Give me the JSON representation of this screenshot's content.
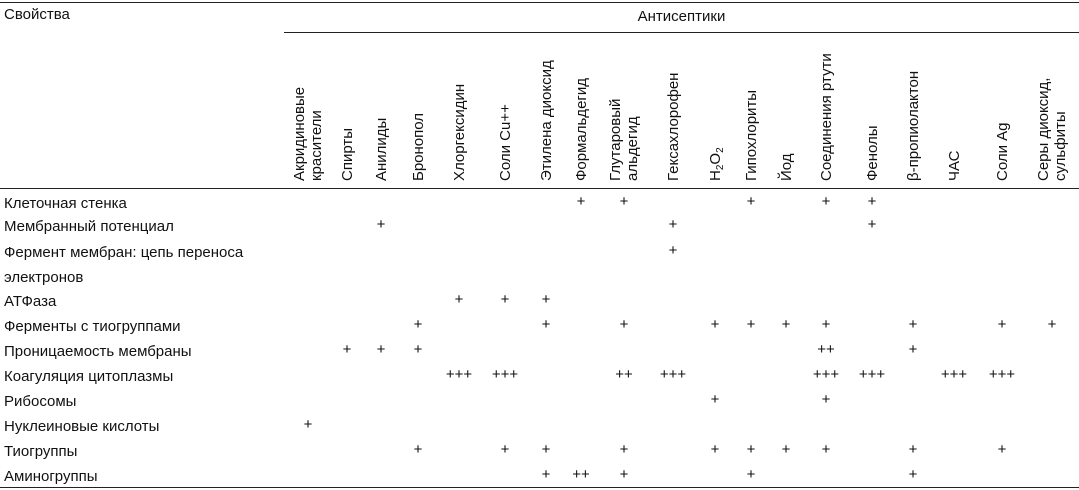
{
  "table": {
    "corner_header": "Свойства",
    "group_header": "Антисептики",
    "columns": [
      {
        "lines": [
          "Акридиновые",
          "красители"
        ]
      },
      {
        "lines": [
          "Спирты"
        ]
      },
      {
        "lines": [
          "Анилиды"
        ]
      },
      {
        "lines": [
          "Бронопол"
        ]
      },
      {
        "lines": [
          "Хлоргексидин"
        ]
      },
      {
        "lines": [
          "Соли Cu++"
        ]
      },
      {
        "lines": [
          "Этилена диоксид"
        ]
      },
      {
        "lines": [
          "Формальдегид"
        ]
      },
      {
        "lines": [
          "Глутаровый",
          "альдегид"
        ]
      },
      {
        "lines": [
          "Гексахлорофен"
        ]
      },
      {
        "lines": [
          "H2O2"
        ],
        "formula": {
          "a": "H",
          "sub1": "2",
          "b": "O",
          "sub2": "2"
        }
      },
      {
        "lines": [
          "Гипохлориты"
        ]
      },
      {
        "lines": [
          "Йод"
        ]
      },
      {
        "lines": [
          "Соединения ртути"
        ]
      },
      {
        "lines": [
          "Фенолы"
        ]
      },
      {
        "lines": [
          "β-пропиолактон"
        ]
      },
      {
        "lines": [
          "ЧАС"
        ]
      },
      {
        "lines": [
          "Соли Ag"
        ]
      },
      {
        "lines": [
          "Серы диоксид,",
          "сульфиты"
        ]
      }
    ],
    "rows": [
      {
        "label": [
          "Клеточная стенка"
        ],
        "marks": {
          "7": "+",
          "8": "+",
          "11": "+",
          "13": "+",
          "14": "+"
        }
      },
      {
        "label": [
          "Мембранный потенциал"
        ],
        "marks": {
          "2": "+",
          "9": "+",
          "14": "+"
        }
      },
      {
        "label": [
          "Фермент мембран: цепь переноса",
          "электронов"
        ],
        "marks": {
          "9": "+"
        }
      },
      {
        "label": [
          "АТФаза"
        ],
        "marks": {
          "4": "+",
          "5": "+",
          "6": "+"
        }
      },
      {
        "label": [
          "Ферменты с тиогруппами"
        ],
        "marks": {
          "3": "+",
          "6": "+",
          "8": "+",
          "10": "+",
          "11": "+",
          "12": "+",
          "13": "+",
          "15": "+",
          "17": "+",
          "18": "+"
        }
      },
      {
        "label": [
          "Проницаемость мембраны"
        ],
        "marks": {
          "1": "+",
          "2": "+",
          "3": "+",
          "13": "++",
          "15": "+"
        }
      },
      {
        "label": [
          "Коагуляция цитоплазмы"
        ],
        "marks": {
          "4": "+++",
          "5": "+++",
          "8": "++",
          "9": "+++",
          "13": "+++",
          "14": "+++",
          "16": "+++",
          "17": "+++"
        }
      },
      {
        "label": [
          "Рибосомы"
        ],
        "marks": {
          "10": "+",
          "13": "+"
        }
      },
      {
        "label": [
          "Нуклеиновые кислоты"
        ],
        "marks": {
          "0": "+"
        }
      },
      {
        "label": [
          "Тиогруппы"
        ],
        "marks": {
          "3": "+",
          "5": "+",
          "6": "+",
          "8": "+",
          "10": "+",
          "11": "+",
          "12": "+",
          "13": "+",
          "15": "+",
          "17": "+"
        }
      },
      {
        "label": [
          "Аминогруппы"
        ],
        "marks": {
          "6": "+",
          "7": "++",
          "8": "+",
          "11": "+",
          "15": "+"
        }
      }
    ]
  }
}
